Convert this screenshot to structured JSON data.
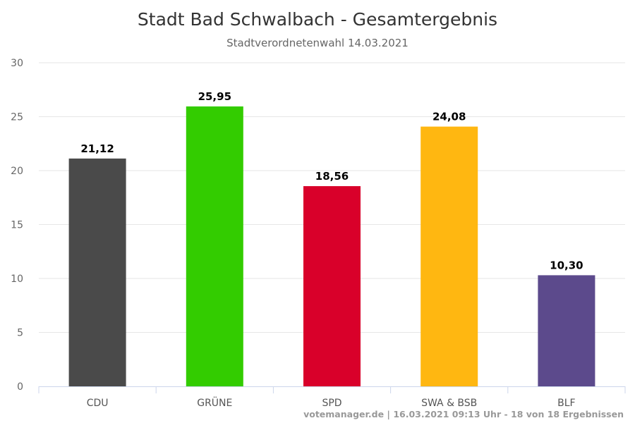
{
  "chart_data": {
    "type": "bar",
    "title": "Stadt Bad Schwalbach - Gesamtergebnis",
    "subtitle": "Stadtverordnetenwahl 14.03.2021",
    "categories": [
      "CDU",
      "GRÜNE",
      "SPD",
      "SWA & BSB",
      "BLF"
    ],
    "values": [
      21.12,
      25.95,
      18.56,
      24.08,
      10.3
    ],
    "value_labels": [
      "21,12",
      "25,95",
      "18,56",
      "24,08",
      "10,30"
    ],
    "colors": [
      "#4a4a4a",
      "#33cc00",
      "#d9002a",
      "#ffb711",
      "#5c4a8c"
    ],
    "ylim": [
      0,
      30
    ],
    "yticks": [
      0,
      5,
      10,
      15,
      20,
      25,
      30
    ],
    "xlabel": "",
    "ylabel": "",
    "grid": true,
    "legend": "none"
  },
  "credits": "votemanager.de | 16.03.2021 09:13 Uhr - 18 von 18 Ergebnissen"
}
